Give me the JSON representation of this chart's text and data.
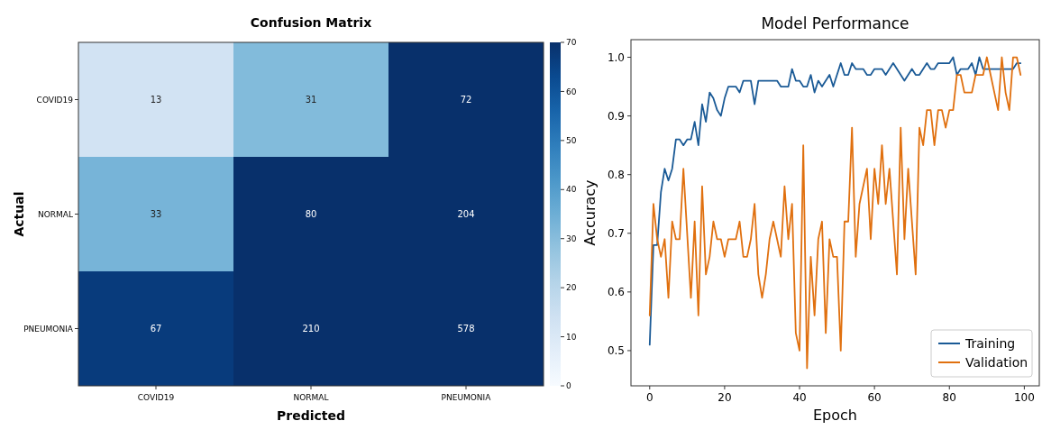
{
  "chart_data": [
    {
      "type": "heatmap",
      "title": "Confusion Matrix",
      "xlabel": "Predicted",
      "ylabel": "Actual",
      "categories": [
        "COVID19",
        "NORMAL",
        "PNEUMONIA"
      ],
      "y_categories": [
        "COVID19",
        "NORMAL",
        "PNEUMONIA"
      ],
      "cells": [
        [
          13,
          31,
          72
        ],
        [
          33,
          80,
          204
        ],
        [
          67,
          210,
          578
        ]
      ],
      "clim": [
        0,
        70
      ],
      "cticks": [
        0,
        10,
        20,
        30,
        40,
        50,
        60,
        70
      ],
      "data_labels": true
    },
    {
      "type": "line",
      "title": "Model Performance",
      "xlabel": "Epoch",
      "ylabel": "Accuracy",
      "x": [
        0,
        1,
        2,
        3,
        4,
        5,
        6,
        7,
        8,
        9,
        10,
        11,
        12,
        13,
        14,
        15,
        16,
        17,
        18,
        19,
        20,
        21,
        22,
        23,
        24,
        25,
        26,
        27,
        28,
        29,
        30,
        31,
        32,
        33,
        34,
        35,
        36,
        37,
        38,
        39,
        40,
        41,
        42,
        43,
        44,
        45,
        46,
        47,
        48,
        49,
        50,
        51,
        52,
        53,
        54,
        55,
        56,
        57,
        58,
        59,
        60,
        61,
        62,
        63,
        64,
        65,
        66,
        67,
        68,
        69,
        70,
        71,
        72,
        73,
        74,
        75,
        76,
        77,
        78,
        79,
        80,
        81,
        82,
        83,
        84,
        85,
        86,
        87,
        88,
        89,
        90,
        91,
        92,
        93,
        94,
        95,
        96,
        97,
        98,
        99
      ],
      "series": [
        {
          "name": "Training",
          "color": "#1a5a96",
          "values": [
            0.51,
            0.68,
            0.68,
            0.77,
            0.81,
            0.79,
            0.81,
            0.86,
            0.86,
            0.85,
            0.86,
            0.86,
            0.89,
            0.85,
            0.92,
            0.89,
            0.94,
            0.93,
            0.91,
            0.9,
            0.93,
            0.95,
            0.95,
            0.95,
            0.94,
            0.96,
            0.96,
            0.96,
            0.92,
            0.96,
            0.96,
            0.96,
            0.96,
            0.96,
            0.96,
            0.95,
            0.95,
            0.95,
            0.98,
            0.96,
            0.96,
            0.95,
            0.95,
            0.97,
            0.94,
            0.96,
            0.95,
            0.96,
            0.97,
            0.95,
            0.97,
            0.99,
            0.97,
            0.97,
            0.99,
            0.98,
            0.98,
            0.98,
            0.97,
            0.97,
            0.98,
            0.98,
            0.98,
            0.97,
            0.98,
            0.99,
            0.98,
            0.97,
            0.96,
            0.97,
            0.98,
            0.97,
            0.97,
            0.98,
            0.99,
            0.98,
            0.98,
            0.99,
            0.99,
            0.99,
            0.99,
            1.0,
            0.97,
            0.98,
            0.98,
            0.98,
            0.99,
            0.97,
            1.0,
            0.98,
            0.98,
            0.98,
            0.98,
            0.98,
            0.98,
            0.98,
            0.98,
            0.98,
            0.99,
            0.99
          ]
        },
        {
          "name": "Validation",
          "color": "#e0700f",
          "values": [
            0.56,
            0.75,
            0.69,
            0.66,
            0.69,
            0.59,
            0.72,
            0.69,
            0.69,
            0.81,
            0.7,
            0.59,
            0.72,
            0.56,
            0.78,
            0.63,
            0.66,
            0.72,
            0.69,
            0.69,
            0.66,
            0.69,
            0.69,
            0.69,
            0.72,
            0.66,
            0.66,
            0.69,
            0.75,
            0.63,
            0.59,
            0.63,
            0.69,
            0.72,
            0.69,
            0.66,
            0.78,
            0.69,
            0.75,
            0.53,
            0.5,
            0.85,
            0.47,
            0.66,
            0.56,
            0.69,
            0.72,
            0.53,
            0.69,
            0.66,
            0.66,
            0.5,
            0.72,
            0.72,
            0.88,
            0.66,
            0.75,
            0.78,
            0.81,
            0.69,
            0.81,
            0.75,
            0.85,
            0.75,
            0.81,
            0.72,
            0.63,
            0.88,
            0.69,
            0.81,
            0.72,
            0.63,
            0.88,
            0.85,
            0.91,
            0.91,
            0.85,
            0.91,
            0.91,
            0.88,
            0.91,
            0.91,
            0.97,
            0.97,
            0.94,
            0.94,
            0.94,
            0.97,
            0.97,
            0.97,
            1.0,
            0.97,
            0.94,
            0.91,
            1.0,
            0.94,
            0.91,
            1.0,
            1.0,
            0.97
          ]
        }
      ],
      "xlim": [
        -5,
        104
      ],
      "xticks": [
        0,
        20,
        40,
        60,
        80,
        100
      ],
      "ylim": [
        0.44,
        1.03
      ],
      "yticks": [
        0.5,
        0.6,
        0.7,
        0.8,
        0.9,
        {
          "value": 1.0,
          "label": "1.0"
        }
      ],
      "legend": "bottom right",
      "grid": false
    }
  ]
}
